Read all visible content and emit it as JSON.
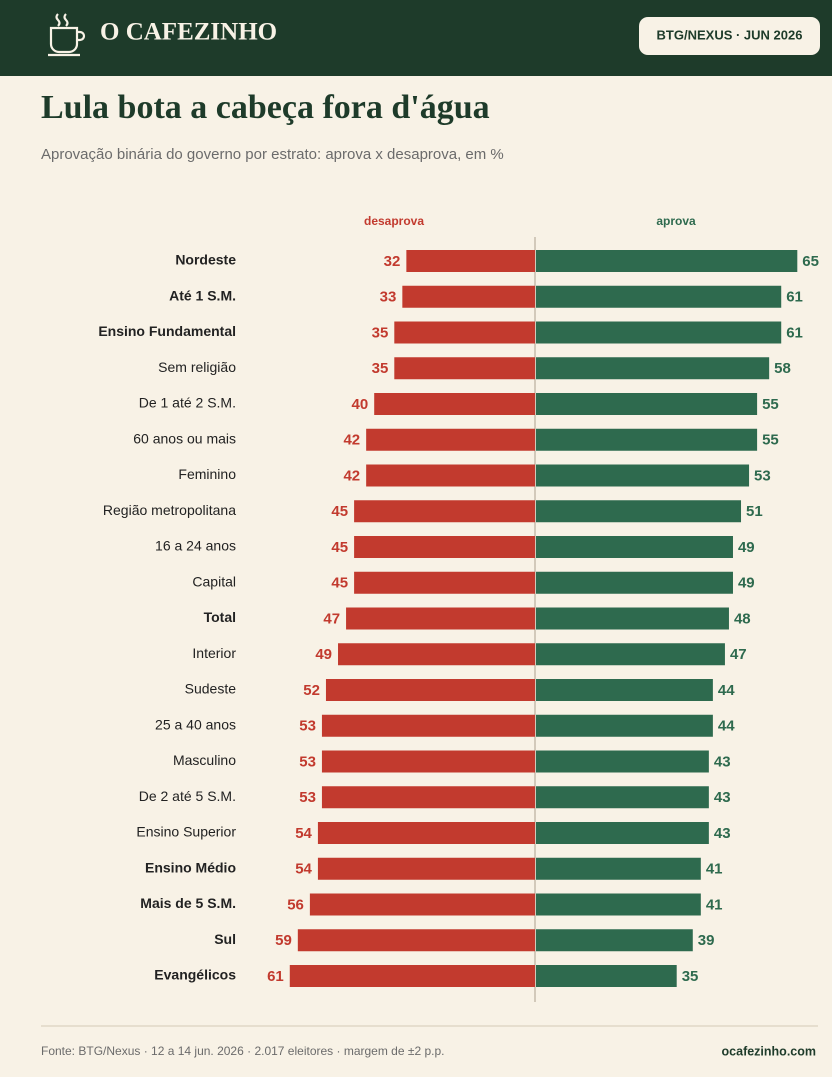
{
  "header": {
    "brand": "O CAFEZINHO",
    "badge": "BTG/NEXUS · JUN 2026"
  },
  "chart_data": {
    "type": "diverging_bar",
    "title": "Lula bota a cabeça fora d'água",
    "subtitle": "Aprovação binária do governo por estrato: aprova x desaprova, em %",
    "categories": [
      "Nordeste",
      "Até 1 S.M.",
      "Ensino Fundamental",
      "Sem religião",
      "De 1 até 2 S.M.",
      "60 anos ou mais",
      "Feminino",
      "Região metropolitana",
      "16 a 24 anos",
      "Capital",
      "Total",
      "Interior",
      "Sudeste",
      "25 a 40 anos",
      "Masculino",
      "De 2 até 5 S.M.",
      "Ensino Superior",
      "Ensino Médio",
      "Mais de 5 S.M.",
      "Sul",
      "Evangélicos"
    ],
    "bold": [
      true,
      true,
      true,
      false,
      false,
      false,
      false,
      false,
      false,
      false,
      true,
      false,
      false,
      false,
      false,
      false,
      false,
      true,
      true,
      true,
      true
    ],
    "series": [
      {
        "name": "desaprova",
        "color": "#c23a2e",
        "side": "left",
        "values": [
          32,
          33,
          35,
          35,
          40,
          42,
          42,
          45,
          45,
          45,
          47,
          49,
          52,
          53,
          53,
          53,
          54,
          54,
          56,
          59,
          61
        ]
      },
      {
        "name": "aprova",
        "color": "#2e6a4e",
        "side": "right",
        "values": [
          65,
          61,
          61,
          58,
          55,
          55,
          53,
          51,
          49,
          49,
          48,
          47,
          44,
          44,
          43,
          43,
          43,
          41,
          41,
          39,
          35
        ]
      }
    ]
  },
  "footer": {
    "source": "Fonte: BTG/Nexus · 12 a 14 jun. 2026 · 2.017 eleitores · margem de ±2 p.p.",
    "site": "ocafezinho.com"
  }
}
